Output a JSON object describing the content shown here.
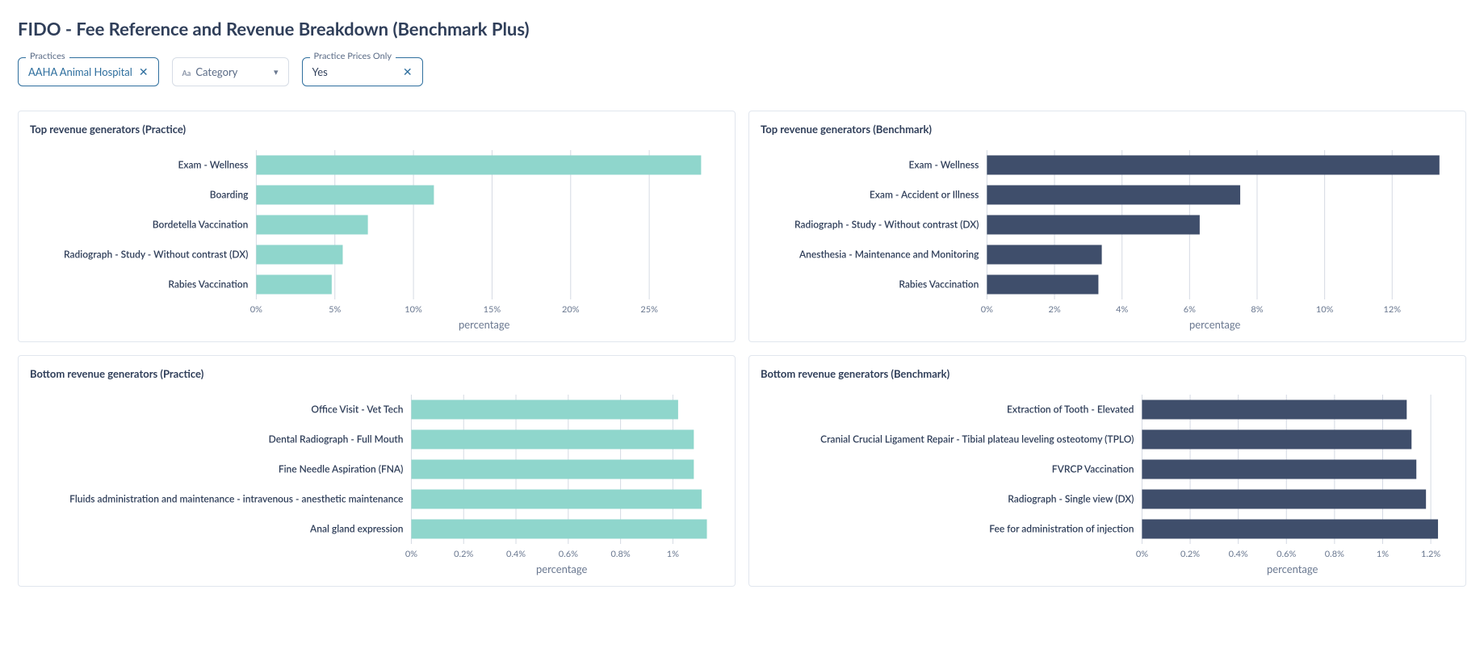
{
  "page_title": "FIDO - Fee Reference and Revenue Breakdown (Benchmark Plus)",
  "filters": {
    "practices": {
      "label": "Practices",
      "value": "AAHA Animal Hospital"
    },
    "category": {
      "placeholder": "Category",
      "prefix": "Aa"
    },
    "prices_only": {
      "label": "Practice Prices Only",
      "value": "Yes"
    }
  },
  "colors": {
    "practice_bar": "#8fd6cc",
    "benchmark_bar": "#3f4e6b",
    "gridline": "#d5dae3",
    "text_dark": "#2f3e59",
    "text_muted": "#6a7890",
    "background": "#ffffff"
  },
  "charts": {
    "top_practice": {
      "title": "Top revenue generators (Practice)",
      "type": "bar-horizontal",
      "xlabel": "percentage",
      "bar_color": "#8fd6cc",
      "tick_format": "percent_int",
      "xlim": [
        0,
        0.29
      ],
      "xtick_step": 0.05,
      "categories": [
        "Exam - Wellness",
        "Boarding",
        "Bordetella Vaccination",
        "Radiograph - Study - Without contrast (DX)",
        "Rabies Vaccination"
      ],
      "values": [
        0.283,
        0.113,
        0.071,
        0.055,
        0.048
      ],
      "label_fontsize": 12,
      "tick_fontsize": 11,
      "xlabel_fontsize": 13
    },
    "top_benchmark": {
      "title": "Top revenue generators (Benchmark)",
      "type": "bar-horizontal",
      "xlabel": "percentage",
      "bar_color": "#3f4e6b",
      "tick_format": "percent_int",
      "xlim": [
        0,
        0.135
      ],
      "xtick_step": 0.02,
      "categories": [
        "Exam - Wellness",
        "Exam - Accident or Illness",
        "Radiograph - Study - Without contrast (DX)",
        "Anesthesia - Maintenance and Monitoring",
        "Rabies Vaccination"
      ],
      "values": [
        0.134,
        0.075,
        0.063,
        0.034,
        0.033
      ],
      "label_fontsize": 12,
      "tick_fontsize": 11,
      "xlabel_fontsize": 13
    },
    "bottom_practice": {
      "title": "Bottom revenue generators (Practice)",
      "type": "bar-horizontal",
      "xlabel": "percentage",
      "bar_color": "#8fd6cc",
      "tick_format": "percent_1dec",
      "xlim": [
        0,
        0.0115
      ],
      "xtick_step": 0.002,
      "categories": [
        "Office Visit - Vet Tech",
        "Dental Radiograph - Full Mouth",
        "Fine Needle Aspiration (FNA)",
        "Fluids administration and maintenance - intravenous - anesthetic maintenance",
        "Anal gland expression"
      ],
      "values": [
        0.0102,
        0.0108,
        0.0108,
        0.0111,
        0.0113
      ],
      "label_fontsize": 12,
      "tick_fontsize": 11,
      "xlabel_fontsize": 13
    },
    "bottom_benchmark": {
      "title": "Bottom revenue generators (Benchmark)",
      "type": "bar-horizontal",
      "xlabel": "percentage",
      "bar_color": "#3f4e6b",
      "tick_format": "percent_1dec",
      "xlim": [
        0,
        0.0125
      ],
      "xtick_step": 0.002,
      "categories": [
        "Extraction of Tooth - Elevated",
        "Cranial Crucial Ligament Repair - Tibial plateau leveling osteotomy (TPLO)",
        "FVRCP Vaccination",
        "Radiograph - Single view (DX)",
        "Fee for administration of injection"
      ],
      "values": [
        0.011,
        0.0112,
        0.0114,
        0.0118,
        0.0123
      ],
      "label_fontsize": 12,
      "tick_fontsize": 11,
      "xlabel_fontsize": 13
    }
  }
}
